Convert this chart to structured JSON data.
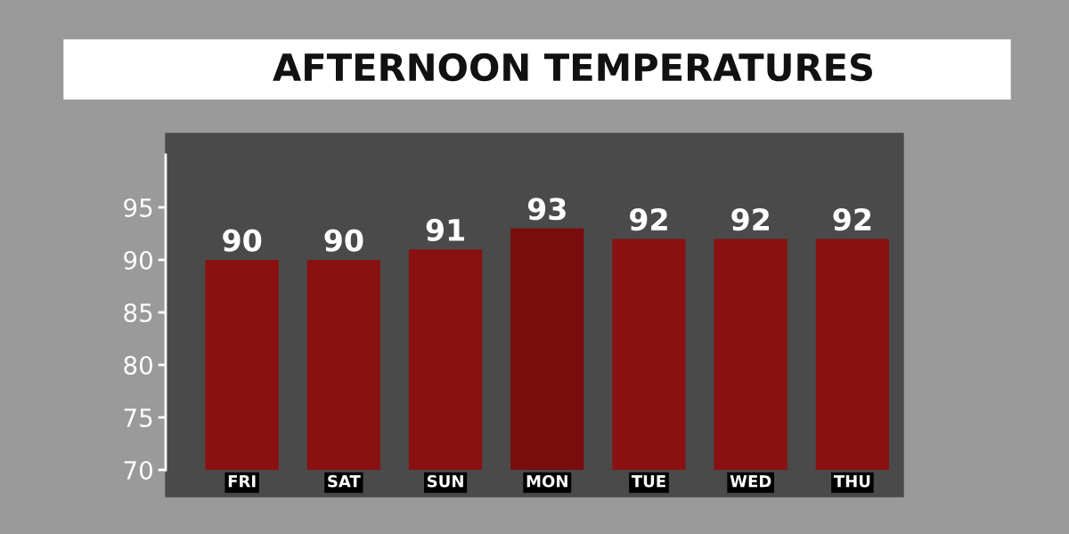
{
  "chart_data": {
    "type": "bar",
    "title": "AFTERNOON TEMPERATURES",
    "categories": [
      "FRI",
      "SAT",
      "SUN",
      "MON",
      "TUE",
      "WED",
      "THU"
    ],
    "values": [
      90,
      90,
      91,
      93,
      92,
      92,
      92
    ],
    "colors": [
      "#8a1111",
      "#8a1111",
      "#8a1111",
      "#790d0d",
      "#8a1111",
      "#8a1111",
      "#8a1111"
    ],
    "ylim": [
      70,
      100
    ],
    "yticks": [
      70,
      75,
      80,
      85,
      90,
      95
    ],
    "data_labels": true,
    "grid": false,
    "legend": false
  }
}
